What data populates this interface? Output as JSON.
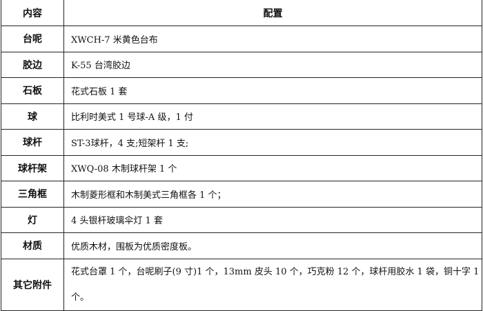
{
  "header": {
    "col1": "内容",
    "col2": "配置"
  },
  "rows": [
    {
      "label": "台呢",
      "value": "XWCH-7 米黄色台布"
    },
    {
      "label": "胶边",
      "value": "K-55 台湾胶边"
    },
    {
      "label": "石板",
      "value": "花式石板 1 套"
    },
    {
      "label": "球",
      "value": "比利时美式 1 号球-A 级，1 付"
    },
    {
      "label": "球杆",
      "value": " ST-3球杆，4 支;短架杆 1 支;"
    },
    {
      "label": "球杆架",
      "value": "XWQ-08 木制球杆架 1 个"
    },
    {
      "label": "三角框",
      "value": "木制菱形框和木制美式三角框各 1 个；"
    },
    {
      "label": "灯",
      "value": "4 头银杆玻璃伞灯 1 套"
    },
    {
      "label": "材质",
      "value": "优质木材，围板为优质密度板。"
    },
    {
      "label": "其它附件",
      "value": "花式台罩 1 个，台呢刷子(9 寸)1 个，13mm 皮头 10 个，巧克粉 12 个，球杆用胶水 1 袋，铜十字 1 个。"
    }
  ]
}
